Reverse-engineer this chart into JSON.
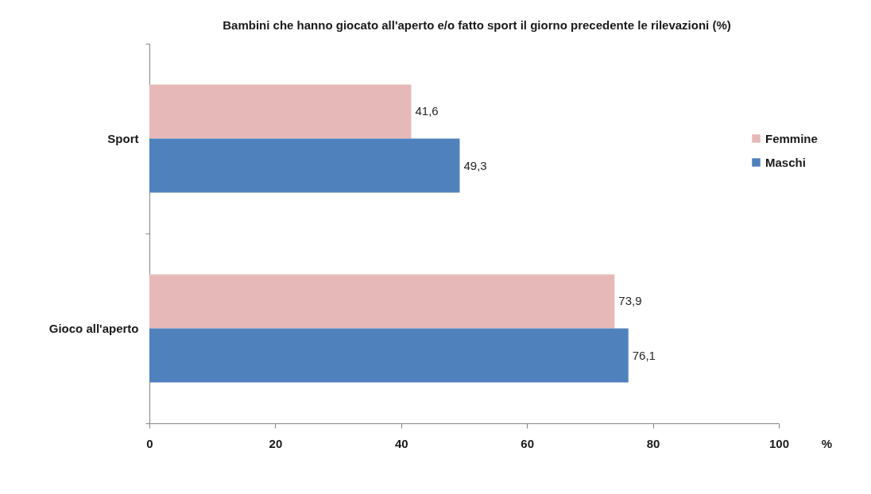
{
  "chart_data": {
    "type": "bar",
    "orientation": "horizontal",
    "title": "Bambini  che hanno giocato all'aperto e/o fatto sport il giorno precedente le rilevazioni (%)",
    "xlabel": "%",
    "categories": [
      "Sport",
      "Gioco all'aperto"
    ],
    "series": [
      {
        "name": "Femmine",
        "color": "#e6b9b8",
        "values": [
          41.6,
          73.9
        ],
        "value_labels": [
          "41,6",
          "73,9"
        ]
      },
      {
        "name": "Maschi",
        "color": "#4f81bd",
        "values": [
          49.3,
          76.1
        ],
        "value_labels": [
          "49,3",
          "76,1"
        ]
      }
    ],
    "xlim": [
      0,
      100
    ],
    "xticks": [
      0,
      20,
      40,
      60,
      80,
      100
    ],
    "grid": false,
    "legend": "right"
  }
}
